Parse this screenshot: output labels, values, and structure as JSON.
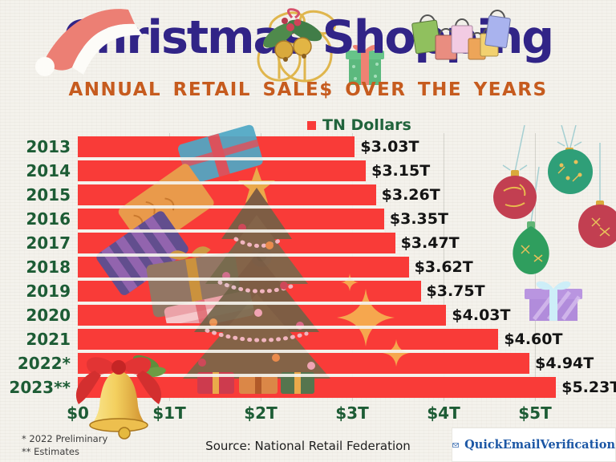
{
  "header": {
    "title": "Christmas Shopping",
    "subtitle": "ANNUAL RETAIL SALE$ OVER THE YEARS"
  },
  "legend": {
    "label": "TN Dollars"
  },
  "chart_data": {
    "type": "bar",
    "orientation": "horizontal",
    "title": "Christmas Shopping",
    "subtitle": "ANNUAL RETAIL SALE$ OVER THE YEARS",
    "series_name": "TN Dollars",
    "unit": "trillions of US dollars",
    "categories": [
      "2013",
      "2014",
      "2015",
      "2016",
      "2017",
      "2018",
      "2019",
      "2020",
      "2021",
      "2022*",
      "2023**"
    ],
    "values": [
      3.03,
      3.15,
      3.26,
      3.35,
      3.47,
      3.62,
      3.75,
      4.03,
      4.6,
      4.94,
      5.23
    ],
    "value_labels": [
      "$3.03T",
      "$3.15T",
      "$3.26T",
      "$3.35T",
      "$3.47T",
      "$3.62T",
      "$3.75T",
      "$4.03T",
      "$4.60T",
      "$4.94T",
      "$5.23T"
    ],
    "x_ticks": [
      "$0",
      "$1T",
      "$2T",
      "$3T",
      "$4T",
      "$5T"
    ],
    "x_tick_values": [
      0,
      1,
      2,
      3,
      4,
      5
    ],
    "xlim": [
      0,
      5.5
    ],
    "grid": "vertical-light",
    "legend_position": "top-center",
    "bar_color": "#f93b38"
  },
  "footnotes": {
    "line1": "* 2022  Preliminary",
    "line2": "** Estimates"
  },
  "source": {
    "text": "Source: National Retail Federation"
  },
  "logo": {
    "brand": "QuickEmailVerification"
  },
  "colors": {
    "background": "#f4f2ec",
    "bar_red": "#f93b38",
    "title_navy": "#312487",
    "subtitle_orange": "#c65b1e",
    "axis_green": "#1d5c35",
    "value_black": "#141414",
    "logo_blue": "#1c57a5"
  },
  "decorations": [
    "santa-hat",
    "gold-gift-outline",
    "holly-bells",
    "green-gift",
    "shopping-bags",
    "gift-stack",
    "christmas-tree",
    "hanging-ornaments",
    "purple-gift",
    "sparkles",
    "gold-bell",
    "envelope"
  ]
}
